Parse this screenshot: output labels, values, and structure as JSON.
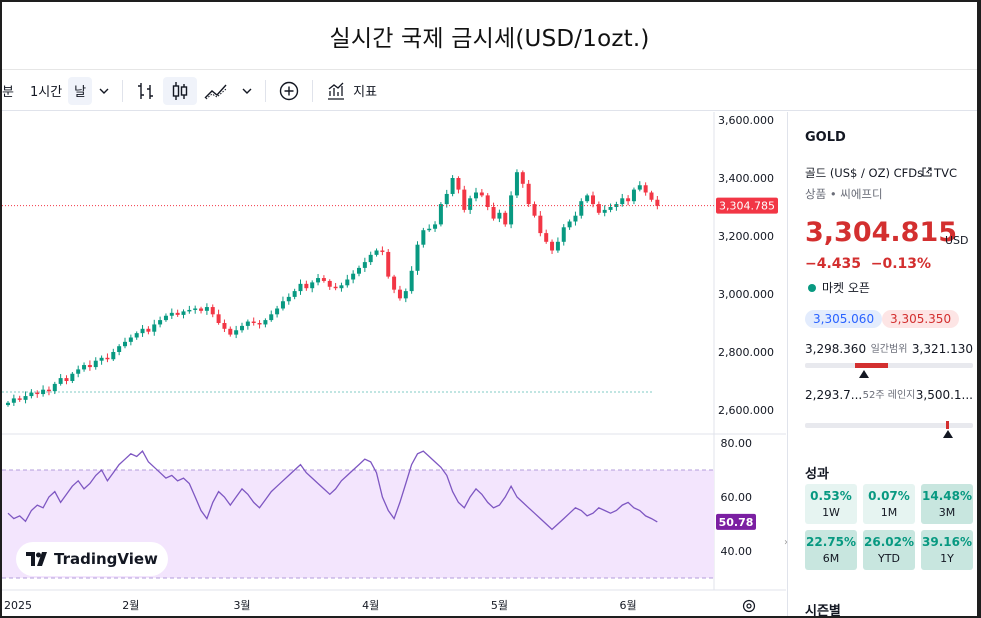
{
  "page": {
    "title": "실시간 국제 금시세(USD/1ozt.)"
  },
  "toolbar": {
    "interval_min": "분",
    "interval_hour": "1시간",
    "interval_day": "날",
    "indicators_label": "지표"
  },
  "symbol": {
    "ticker": "GOLD",
    "description": "골드 (US$ / OZ) CFDs · TVC",
    "category": "상품 • 씨에프디",
    "price": "3,304.815",
    "currency": "USD",
    "change": "−4.435",
    "change_pct": "−0.13%",
    "market_status": "마켓 오픈",
    "bid": "3,305.060",
    "ask": "3,305.350",
    "day_low": "3,298.360",
    "day_label": "일간범위",
    "day_high": "3,321.130",
    "day_position": 0.35,
    "week52_low": "2,293.7...",
    "week52_label": "52주 레인지",
    "week52_high": "3,500.1...",
    "week52_position": 0.85
  },
  "performance": {
    "title": "성과",
    "items": [
      {
        "value": "0.53%",
        "period": "1W"
      },
      {
        "value": "0.07%",
        "period": "1M"
      },
      {
        "value": "14.48%",
        "period": "3M"
      },
      {
        "value": "22.75%",
        "period": "6M"
      },
      {
        "value": "26.02%",
        "period": "YTD"
      },
      {
        "value": "39.16%",
        "period": "1Y"
      }
    ]
  },
  "season_title": "시즌별",
  "brand": "TradingView",
  "colors": {
    "up": "#089981",
    "down": "#f23645",
    "rsi": "#7e57c2",
    "price_tag": "#f23645"
  },
  "chart_data": {
    "type": "candlestick",
    "price_axis": [
      "3,600.000",
      "3,400.000",
      "3,200.000",
      "3,000.000",
      "2,800.000",
      "2,600.000"
    ],
    "price_ticks": [
      3600,
      3400,
      3200,
      3000,
      2800,
      2600
    ],
    "last_price_label": "3,304.785",
    "last_price": 3304.785,
    "reference_line": 2662,
    "rsi_axis": [
      "80.00",
      "60.00",
      "40.00"
    ],
    "rsi_ticks": [
      80,
      60,
      40
    ],
    "rsi_band": [
      70,
      30
    ],
    "rsi_last_label": "50.78",
    "rsi_last": 50.78,
    "time_labels": [
      "2025",
      "2월",
      "3월",
      "4월",
      "5월",
      "6월"
    ],
    "time_label_index": [
      -1,
      21,
      40,
      62,
      84,
      106
    ],
    "closes": [
      2625,
      2640,
      2635,
      2648,
      2660,
      2655,
      2670,
      2665,
      2690,
      2710,
      2700,
      2725,
      2740,
      2755,
      2748,
      2770,
      2780,
      2775,
      2800,
      2820,
      2835,
      2850,
      2865,
      2880,
      2870,
      2895,
      2910,
      2925,
      2935,
      2928,
      2940,
      2945,
      2950,
      2942,
      2955,
      2930,
      2900,
      2880,
      2860,
      2875,
      2890,
      2905,
      2900,
      2895,
      2910,
      2930,
      2950,
      2975,
      2990,
      3010,
      3035,
      3020,
      3040,
      3055,
      3045,
      3025,
      3020,
      3030,
      3050,
      3070,
      3090,
      3110,
      3135,
      3150,
      3145,
      3060,
      3015,
      2985,
      3010,
      3080,
      3170,
      3220,
      3225,
      3240,
      3310,
      3345,
      3400,
      3360,
      3290,
      3330,
      3350,
      3340,
      3300,
      3260,
      3280,
      3240,
      3340,
      3420,
      3380,
      3310,
      3270,
      3210,
      3180,
      3150,
      3180,
      3230,
      3250,
      3270,
      3320,
      3340,
      3310,
      3280,
      3290,
      3300,
      3310,
      3330,
      3320,
      3360,
      3375,
      3350,
      3325,
      3304
    ],
    "rsi": [
      54,
      52,
      53,
      51,
      55,
      57,
      56,
      60,
      62,
      58,
      61,
      64,
      66,
      63,
      65,
      68,
      70,
      66,
      69,
      72,
      74,
      76,
      75,
      77,
      73,
      71,
      69,
      67,
      68,
      66,
      67,
      65,
      60,
      55,
      52,
      58,
      62,
      60,
      57,
      60,
      63,
      61,
      58,
      56,
      59,
      62,
      64,
      66,
      68,
      70,
      72,
      69,
      67,
      65,
      63,
      61,
      63,
      66,
      68,
      70,
      72,
      74,
      73,
      69,
      60,
      55,
      52,
      58,
      65,
      72,
      76,
      77,
      75,
      73,
      71,
      68,
      62,
      58,
      56,
      60,
      63,
      61,
      58,
      56,
      57,
      60,
      64,
      60,
      58,
      56,
      54,
      52,
      50,
      48,
      50,
      52,
      54,
      56,
      55,
      53,
      54,
      56,
      55,
      54,
      55,
      57,
      58,
      56,
      55,
      53,
      52,
      50.78
    ]
  }
}
